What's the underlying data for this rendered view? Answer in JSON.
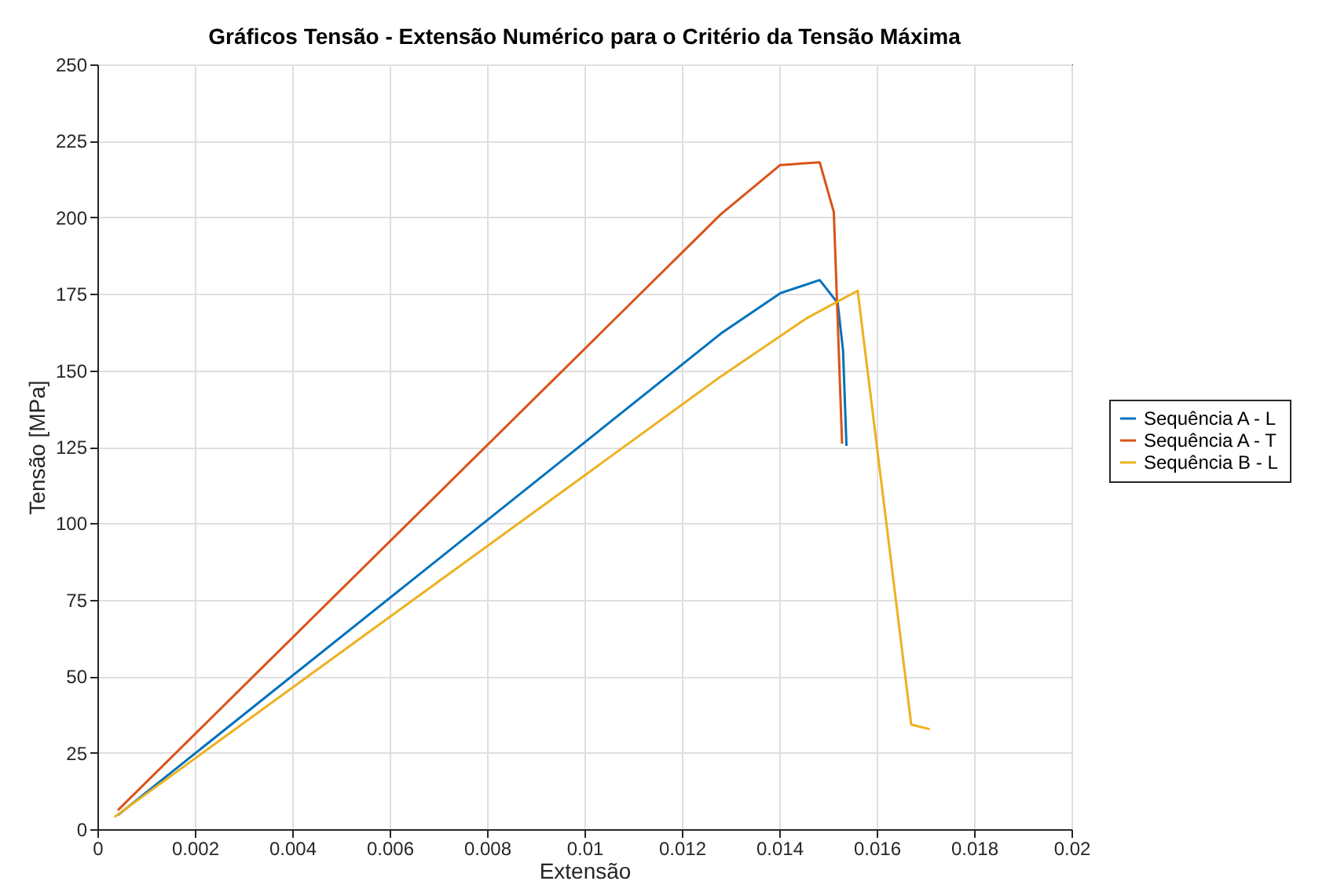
{
  "chart_data": {
    "type": "line",
    "title": "Gráficos Tensão - Extensão Numérico para o Critério da Tensão Máxima",
    "xlabel": "Extensão",
    "ylabel": "Tensão [MPa]",
    "xlim": [
      0,
      0.02
    ],
    "xticks": [
      0,
      0.002,
      0.004,
      0.006,
      0.008,
      0.01,
      0.012,
      0.014,
      0.016,
      0.018,
      0.02
    ],
    "ylim": [
      0,
      250
    ],
    "yticks": [
      0,
      25,
      50,
      75,
      100,
      125,
      150,
      175,
      200,
      225,
      250
    ],
    "grid": true,
    "legend": "right",
    "line_style": "solid",
    "marker": "none",
    "series": [
      {
        "name": "Sequência A - L",
        "color": "#0072bd",
        "x": [
          0.00042,
          0.0128,
          0.01402,
          0.01483,
          0.0152,
          0.01531,
          0.01538
        ],
        "values": [
          4.6,
          162,
          175.2,
          179.5,
          172,
          156.4,
          125.3
        ]
      },
      {
        "name": "Sequência A - T",
        "color": "#d95319",
        "x": [
          0.00042,
          0.0128,
          0.01402,
          0.01483,
          0.01512,
          0.01529
        ],
        "values": [
          6.2,
          201,
          217.1,
          218,
          201.7,
          126
        ]
      },
      {
        "name": "Sequência B - L",
        "color": "#edb120",
        "x": [
          0.00035,
          0.0128,
          0.01456,
          0.01561,
          0.01671,
          0.01709
        ],
        "values": [
          4,
          148,
          167,
          176,
          34.2,
          32.7
        ]
      }
    ]
  }
}
